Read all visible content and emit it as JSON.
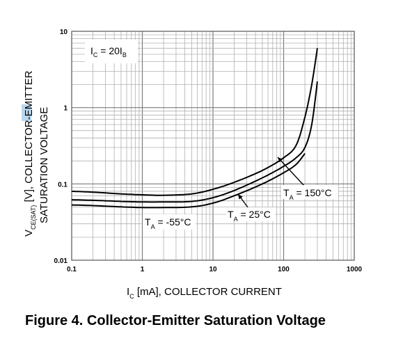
{
  "caption": "Figure 4. Collector-Emitter Saturation Voltage",
  "chart_data": {
    "type": "line",
    "title": "",
    "xscale": "log",
    "yscale": "log",
    "xlim": [
      0.1,
      1000
    ],
    "ylim": [
      0.01,
      10
    ],
    "grid": true,
    "x_ticks": [
      "0.1",
      "1",
      "10",
      "100",
      "1000"
    ],
    "y_ticks": [
      "0.01",
      "0.1",
      "1",
      "10"
    ],
    "xlabel": {
      "main": "I",
      "sub": "C",
      "rest": " [mA], COLLECTOR CURRENT"
    },
    "ylabel": {
      "line1_main": "V",
      "line1_sub": "CE(SAT)",
      "line1_rest": " [V], COLLECTOR-EMITTER",
      "line2": "SATURATION VOLTAGE"
    },
    "condition": {
      "main": "I",
      "sub1": "C",
      "mid": " = 20I",
      "sub2": "B"
    },
    "series": [
      {
        "label": {
          "main": "T",
          "sub": "A",
          "rest": " = 150°C"
        },
        "color": "#000000",
        "x": [
          0.1,
          0.2,
          0.5,
          1,
          2,
          5,
          10,
          20,
          50,
          100,
          150,
          200,
          250,
          300
        ],
        "y": [
          0.08,
          0.078,
          0.074,
          0.072,
          0.071,
          0.074,
          0.085,
          0.105,
          0.15,
          0.22,
          0.32,
          0.75,
          2.0,
          6.0
        ]
      },
      {
        "label": {
          "main": "T",
          "sub": "A",
          "rest": " = 25°C"
        },
        "color": "#000000",
        "x": [
          0.1,
          0.2,
          0.5,
          1,
          2,
          5,
          10,
          20,
          50,
          100,
          150,
          200,
          250,
          300
        ],
        "y": [
          0.062,
          0.061,
          0.059,
          0.058,
          0.058,
          0.059,
          0.066,
          0.082,
          0.12,
          0.17,
          0.22,
          0.3,
          0.6,
          2.2
        ]
      },
      {
        "label": {
          "main": "T",
          "sub": "A",
          "rest": " = -55°C"
        },
        "color": "#000000",
        "x": [
          0.1,
          0.2,
          0.5,
          1,
          2,
          5,
          10,
          20,
          50,
          100,
          150,
          200
        ],
        "y": [
          0.053,
          0.052,
          0.05,
          0.049,
          0.049,
          0.05,
          0.056,
          0.07,
          0.1,
          0.14,
          0.18,
          0.25
        ]
      }
    ]
  }
}
